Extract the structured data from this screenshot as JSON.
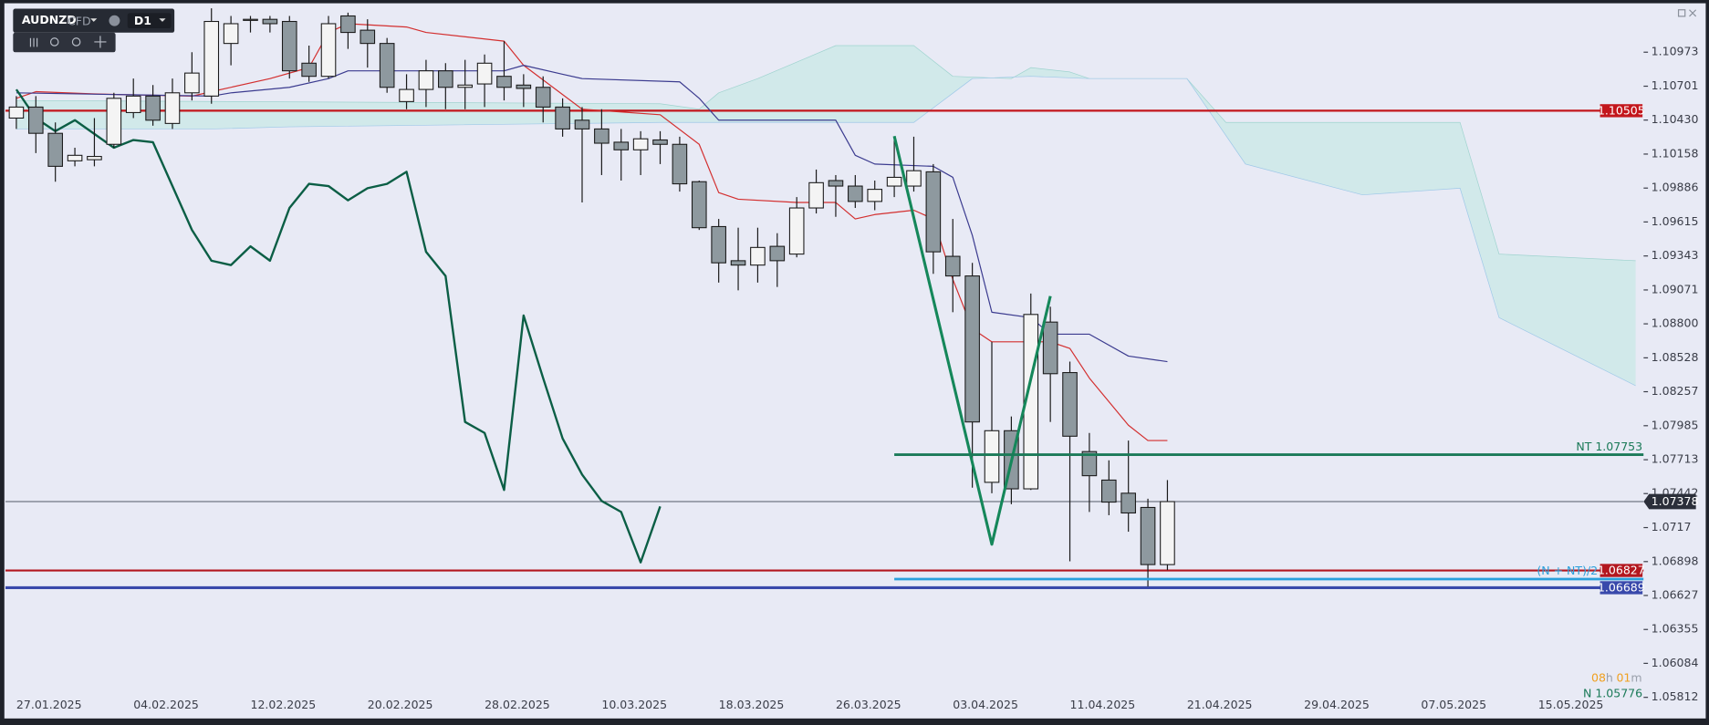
{
  "toolbar": {
    "symbol": "AUDNZD",
    "instrument_type": "CFD",
    "timeframe": "D1"
  },
  "countdown": {
    "hours": "08",
    "hours_unit": "h",
    "minutes": "01",
    "minutes_unit": "m"
  },
  "chart_data": {
    "type": "candlestick",
    "bull_color": "#f4f4f4",
    "bear_color": "#8e999f",
    "categories": [
      "27.01.2025",
      null,
      null,
      null,
      null,
      null,
      "04.02.2025",
      null,
      null,
      null,
      null,
      null,
      "12.02.2025",
      null,
      null,
      null,
      null,
      null,
      "20.02.2025",
      null,
      null,
      null,
      null,
      null,
      "28.02.2025",
      null,
      null,
      null,
      null,
      null,
      "10.03.2025",
      null,
      null,
      null,
      null,
      null,
      "18.03.2025",
      null,
      null,
      null,
      null,
      null,
      "26.03.2025",
      null,
      null,
      null,
      null,
      null,
      "03.04.2025",
      null,
      null,
      null,
      null,
      null,
      "11.04.2025",
      null,
      null,
      null,
      null,
      null,
      "21.04.2025",
      null,
      null,
      null,
      null,
      null,
      "29.04.2025",
      null,
      null,
      null,
      null,
      null,
      "07.05.2025",
      null,
      null,
      null,
      null,
      null,
      "15.05.2025"
    ],
    "open": [
      1.10446,
      1.10534,
      1.10324,
      1.10104,
      1.10113,
      1.10236,
      1.1049,
      1.10622,
      1.10403,
      1.10648,
      1.10622,
      1.11043,
      1.11228,
      1.11236,
      1.11219,
      1.10885,
      1.1078,
      1.11263,
      1.11149,
      1.11043,
      1.10578,
      1.10675,
      1.10824,
      1.10692,
      1.10719,
      1.1078,
      1.1071,
      1.10692,
      1.10534,
      1.10429,
      1.10359,
      1.10253,
      1.10192,
      1.10271,
      1.10236,
      1.09937,
      1.09578,
      1.09305,
      1.0927,
      1.0942,
      1.09358,
      1.09727,
      1.09946,
      1.09902,
      1.09779,
      1.09902,
      1.09902,
      1.10016,
      1.0934,
      1.09183,
      1.07532,
      1.07945,
      1.0748,
      1.08814,
      1.0841,
      1.07778,
      1.0755,
      1.07445,
      1.07331,
      1.06874,
      null,
      null,
      null,
      null,
      null,
      null,
      null,
      null,
      null,
      null,
      null,
      null,
      null,
      null,
      null,
      null,
      null,
      null,
      null
    ],
    "high": [
      1.10622,
      1.10622,
      1.10411,
      1.10209,
      1.10446,
      1.10648,
      1.10762,
      1.1071,
      1.10762,
      1.10973,
      1.11324,
      1.11263,
      1.11263,
      1.11263,
      1.11263,
      1.11026,
      1.11263,
      1.11289,
      1.11236,
      1.11087,
      1.10797,
      1.10912,
      1.10885,
      1.10912,
      1.10955,
      1.11061,
      1.10797,
      1.1078,
      1.10604,
      1.10534,
      1.10517,
      1.10359,
      1.10341,
      1.10341,
      1.10297,
      1.09946,
      1.09639,
      1.09569,
      1.09569,
      1.09525,
      1.09814,
      1.10034,
      1.0999,
      1.0999,
      1.09946,
      1.10297,
      1.10297,
      1.10078,
      1.09639,
      1.09288,
      1.08656,
      1.08059,
      1.09042,
      1.08937,
      1.08498,
      1.07927,
      1.07708,
      1.07866,
      1.07401,
      1.0755,
      null,
      null,
      null,
      null,
      null,
      null,
      null,
      null,
      null,
      null,
      null,
      null,
      null,
      null,
      null,
      null,
      null,
      null,
      null
    ],
    "low": [
      1.10359,
      1.10166,
      1.09937,
      1.1006,
      1.1006,
      1.10209,
      1.10446,
      1.10385,
      1.10359,
      1.10587,
      1.10561,
      1.10868,
      1.11131,
      1.11131,
      1.10762,
      1.10736,
      1.10762,
      1.10999,
      1.1085,
      1.10648,
      1.10517,
      1.10534,
      1.10517,
      1.10517,
      1.10534,
      1.10587,
      1.10534,
      1.10411,
      1.10297,
      1.09771,
      1.0999,
      1.09946,
      1.0999,
      1.10078,
      1.09858,
      1.09551,
      1.0913,
      1.09068,
      1.0913,
      1.09095,
      1.09332,
      1.09683,
      1.09656,
      1.09727,
      1.09709,
      1.09814,
      1.09858,
      1.092,
      1.08893,
      1.07489,
      1.07445,
      1.07357,
      1.07471,
      1.08015,
      1.069,
      1.07295,
      1.07269,
      1.07137,
      1.06699,
      1.0683,
      null,
      null,
      null,
      null,
      null,
      null,
      null,
      null,
      null,
      null,
      null,
      null,
      null,
      null,
      null,
      null,
      null,
      null,
      null
    ],
    "close": [
      1.10534,
      1.10324,
      1.1006,
      1.10148,
      1.10139,
      1.10604,
      1.10622,
      1.10429,
      1.10648,
      1.10806,
      1.11219,
      1.11201,
      1.11236,
      1.11201,
      1.10824,
      1.1078,
      1.11201,
      1.11131,
      1.11043,
      1.10692,
      1.10675,
      1.10824,
      1.10692,
      1.1071,
      1.10885,
      1.10692,
      1.10683,
      1.10534,
      1.10359,
      1.10359,
      1.10245,
      1.10192,
      1.1028,
      1.10236,
      1.0992,
      1.09569,
      1.09288,
      1.0927,
      1.09411,
      1.09305,
      1.09727,
      1.09929,
      1.09902,
      1.09779,
      1.09876,
      1.09972,
      1.10025,
      1.09376,
      1.09183,
      1.08015,
      1.07945,
      1.0748,
      1.08875,
      1.08401,
      1.07901,
      1.07585,
      1.07374,
      1.07287,
      1.06874,
      1.07378,
      null,
      null,
      null,
      null,
      null,
      null,
      null,
      null,
      null,
      null,
      null,
      null,
      null,
      null,
      null,
      null,
      null,
      null,
      null
    ],
    "tenkan": {
      "color": "#d32f2f",
      "x": [
        0,
        1,
        4,
        9,
        10,
        13,
        15,
        16,
        17,
        20,
        21,
        25,
        26,
        29,
        33,
        35,
        36,
        37,
        40,
        42,
        43,
        44,
        46,
        47,
        48,
        49,
        50,
        53,
        54,
        55,
        57,
        58,
        59
      ],
      "values": [
        1.10604,
        1.10657,
        1.10639,
        1.10622,
        1.10657,
        1.10762,
        1.1085,
        1.11131,
        1.11201,
        1.11175,
        1.11131,
        1.11061,
        1.10868,
        1.10517,
        1.10473,
        1.10236,
        1.0985,
        1.09797,
        1.09771,
        1.09771,
        1.09639,
        1.09674,
        1.09709,
        1.09639,
        1.09156,
        1.08761,
        1.08656,
        1.08656,
        1.08603,
        1.08366,
        1.07989,
        1.07866,
        1.07866
      ]
    },
    "kijun": {
      "color": "#3b3b8f",
      "x": [
        0,
        10,
        11,
        14,
        16,
        17,
        25,
        26,
        28,
        29,
        34,
        35,
        36,
        42,
        43,
        44,
        47,
        48,
        49,
        50,
        52,
        53,
        55,
        57,
        59
      ],
      "values": [
        1.10648,
        1.10622,
        1.10648,
        1.10692,
        1.10762,
        1.10824,
        1.10824,
        1.10868,
        1.10797,
        1.10762,
        1.10736,
        1.10604,
        1.10429,
        1.10429,
        1.10148,
        1.10078,
        1.1006,
        1.09972,
        1.09508,
        1.08893,
        1.08849,
        1.08717,
        1.08717,
        1.08542,
        1.08498
      ]
    },
    "chikou": {
      "color": "#0b5e45",
      "x": [
        0,
        1,
        2,
        3,
        5,
        6,
        7,
        9,
        10,
        11,
        12,
        13,
        14,
        15,
        16,
        17,
        18,
        19,
        20,
        21,
        22,
        23,
        24,
        25,
        26,
        27,
        28,
        29,
        30,
        31,
        32,
        33
      ],
      "values": [
        1.10675,
        1.10446,
        1.10341,
        1.10429,
        1.10209,
        1.10271,
        1.10253,
        1.09551,
        1.09305,
        1.0927,
        1.0942,
        1.09305,
        1.09727,
        1.0992,
        1.09902,
        1.09788,
        1.09885,
        1.0992,
        1.10016,
        1.09376,
        1.09183,
        1.08015,
        1.07927,
        1.07471,
        1.08867,
        1.08366,
        1.07883,
        1.07594,
        1.07383,
        1.07295,
        1.06892,
        1.07339
      ]
    },
    "cloud_color": "#cde9e8",
    "cloud_upper": {
      "color": "#9fd3cf",
      "x": [
        0,
        33,
        35,
        36,
        38,
        42,
        46,
        48,
        51,
        52,
        54,
        55,
        60,
        62,
        74,
        76,
        83
      ],
      "values": [
        1.10587,
        1.10561,
        1.10517,
        1.10648,
        1.10762,
        1.11026,
        1.11026,
        1.1078,
        1.10762,
        1.1085,
        1.10815,
        1.10762,
        1.10762,
        1.10411,
        1.10411,
        1.09358,
        1.09305
      ]
    },
    "cloud_lower": {
      "color": "#9fc8e8",
      "x": [
        0,
        10,
        14,
        33,
        46,
        49,
        52,
        55,
        60,
        63,
        69,
        74,
        76,
        83
      ],
      "values": [
        1.10359,
        1.10359,
        1.10376,
        1.10411,
        1.10411,
        1.10762,
        1.1078,
        1.10762,
        1.10762,
        1.10078,
        1.09832,
        1.09885,
        1.08849,
        1.08305
      ]
    },
    "pattern": {
      "color": "#15875a",
      "x": [
        45,
        50,
        53
      ],
      "values": [
        1.10302,
        1.07036,
        1.09022
      ]
    },
    "levels": [
      {
        "value": 1.10505,
        "label": "1.10505",
        "color": "#c3161c"
      },
      {
        "value": 1.06827,
        "label": "1.06827",
        "color": "#b3171f"
      },
      {
        "value": 1.06689,
        "label": "1.06689",
        "color": "#3949ab"
      }
    ],
    "drawings": [
      {
        "value": 1.07753,
        "label": "NT 1.07753",
        "color": "#1b7a58",
        "x_start": 45
      },
      {
        "value": 1.06758,
        "label": "(N + NT)/2",
        "color": "#2aa0dc",
        "x_start": 45
      }
    ],
    "annotation": {
      "value": 1.05776,
      "label": "N 1.05776",
      "color": "#1b7a58"
    },
    "last_price": {
      "value": 1.07378,
      "label": "1.07378",
      "color": "#2b2f3a"
    },
    "ylim": [
      1.05643,
      1.11347
    ],
    "yticks": [
      1.10973,
      1.10701,
      {
        "value": 1.1043,
        "label": "1.10430"
      },
      1.10158,
      1.09886,
      1.09615,
      1.09343,
      1.09071,
      {
        "value": 1.088,
        "label": "1.08800"
      },
      1.08528,
      1.08257,
      1.07985,
      1.07713,
      1.07442,
      1.0717,
      1.06898,
      1.06627,
      1.06355,
      1.06084,
      1.05812
    ]
  }
}
